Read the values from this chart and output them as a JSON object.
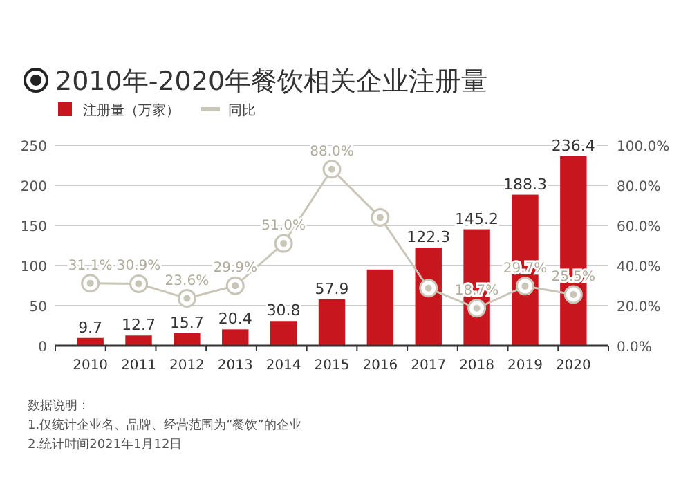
{
  "chart_data": {
    "type": "bar",
    "title": "2010年-2020年餐饮相关企业注册量",
    "categories": [
      "2010",
      "2011",
      "2012",
      "2013",
      "2014",
      "2015",
      "2016",
      "2017",
      "2018",
      "2019",
      "2020"
    ],
    "series": [
      {
        "name": "注册量（万家）",
        "color": "#c8161e",
        "values": [
          9.7,
          12.7,
          15.7,
          20.4,
          30.8,
          57.9,
          95.0,
          122.3,
          145.2,
          188.3,
          236.4
        ],
        "value_labels": [
          "9.7",
          "12.7",
          "15.7",
          "20.4",
          "30.8",
          "57.9",
          null,
          "122.3",
          "145.2",
          "188.3",
          "236.4"
        ]
      },
      {
        "name": "同比",
        "type": "line",
        "axis": "y2",
        "color": "#c9c6b8",
        "marker": "circle",
        "values": [
          31.1,
          30.9,
          23.6,
          29.9,
          51.0,
          88.0,
          64.0,
          28.7,
          18.7,
          29.7,
          25.5
        ],
        "value_labels": [
          "31.1%",
          "30.9%",
          "23.6%",
          "29.9%",
          "51.0%",
          "88.0%",
          null,
          null,
          "18.7%",
          "29.7%",
          "25.5%"
        ]
      }
    ],
    "ylim": [
      0,
      250
    ],
    "yticks": [
      0,
      50,
      100,
      150,
      200,
      250
    ],
    "y2lim": [
      0,
      100
    ],
    "y2ticks": [
      {
        "value": 0,
        "label": "0.0%"
      },
      {
        "value": 20,
        "label": "20.0%"
      },
      {
        "value": 40,
        "label": "40.0%"
      },
      {
        "value": 60,
        "label": "60.0%"
      },
      {
        "value": 80,
        "label": "80.0%"
      },
      {
        "value": 100,
        "label": "100.0%"
      }
    ],
    "grid": "y",
    "legend": "top left",
    "annotations": [
      "数据说明：",
      "1.仅统计企业名、品牌、经营范围为“餐饮”的企业",
      "2.统计时间2021年1月12日"
    ]
  }
}
